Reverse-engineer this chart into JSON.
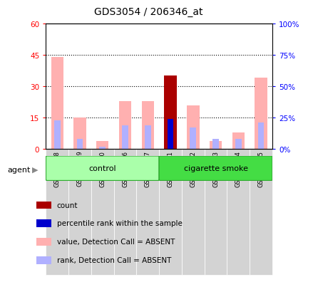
{
  "title": "GDS3054 / 206346_at",
  "samples": [
    "GSM227858",
    "GSM227859",
    "GSM227860",
    "GSM227866",
    "GSM227867",
    "GSM227861",
    "GSM227862",
    "GSM227863",
    "GSM227864",
    "GSM227865"
  ],
  "value_absent": [
    44.0,
    15.0,
    4.0,
    23.0,
    23.0,
    0.0,
    21.0,
    4.0,
    8.0,
    34.0
  ],
  "rank_absent": [
    23.0,
    8.0,
    2.0,
    19.0,
    19.0,
    0.0,
    17.0,
    8.0,
    8.0,
    21.0
  ],
  "count_present": [
    0.0,
    0.0,
    0.0,
    0.0,
    0.0,
    35.0,
    0.0,
    0.0,
    0.0,
    0.0
  ],
  "percentile_present": [
    0.0,
    0.0,
    0.0,
    0.0,
    0.0,
    24.0,
    0.0,
    0.0,
    0.0,
    0.0
  ],
  "ylim_left": [
    0,
    60
  ],
  "ylim_right": [
    0,
    100
  ],
  "yticks_left": [
    0,
    15,
    30,
    45,
    60
  ],
  "yticks_right": [
    0,
    25,
    50,
    75,
    100
  ],
  "yticklabels_left": [
    "0",
    "15",
    "30",
    "45",
    "60"
  ],
  "yticklabels_right": [
    "0%",
    "25%",
    "50%",
    "75%",
    "100%"
  ],
  "color_count": "#aa0000",
  "color_percentile": "#0000cc",
  "color_value_absent": "#ffb0b0",
  "color_rank_absent": "#b0b0ff",
  "legend_items": [
    {
      "label": "count",
      "color": "#aa0000"
    },
    {
      "label": "percentile rank within the sample",
      "color": "#0000cc"
    },
    {
      "label": "value, Detection Call = ABSENT",
      "color": "#ffb0b0"
    },
    {
      "label": "rank, Detection Call = ABSENT",
      "color": "#b0b0ff"
    }
  ]
}
